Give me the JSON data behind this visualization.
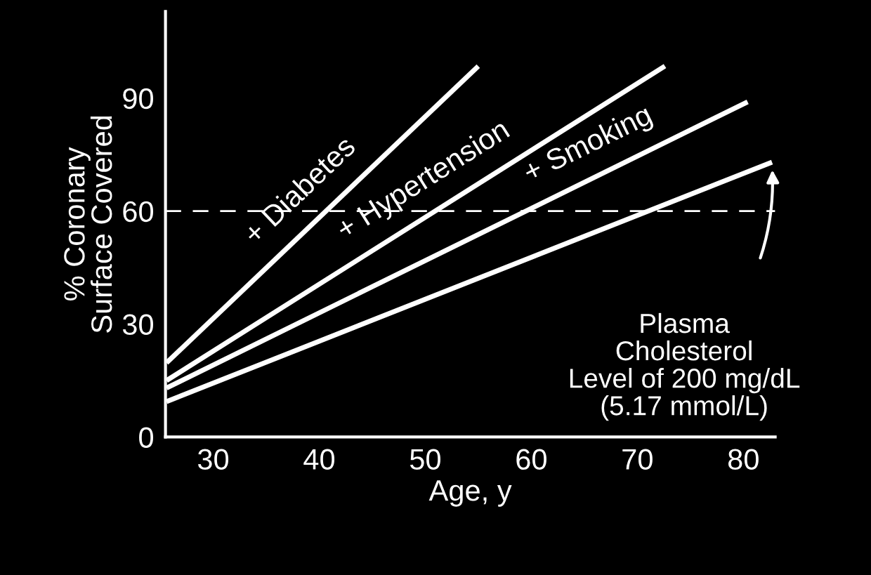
{
  "chart_data": {
    "type": "line",
    "xlabel": "Age, y",
    "ylabel": "% Coronary\nSurface Covered",
    "xlim": [
      25.5,
      83
    ],
    "ylim": [
      0,
      113
    ],
    "xticks": [
      30,
      40,
      50,
      60,
      70,
      80
    ],
    "yticks": [
      0,
      30,
      60,
      90
    ],
    "grid": false,
    "legend": false,
    "marker": "none",
    "line_style": "solid",
    "series": [
      {
        "name": "+ Diabetes",
        "color": "#ffffff",
        "x": [
          25.6,
          55
        ],
        "values": [
          19.7,
          98.5
        ]
      },
      {
        "name": "+ Hypertension",
        "color": "#ffffff",
        "x": [
          25.6,
          72.6
        ],
        "values": [
          15,
          98.5
        ]
      },
      {
        "name": "+ Smoking",
        "color": "#ffffff",
        "x": [
          25.6,
          80.4
        ],
        "values": [
          13,
          89
        ]
      },
      {
        "name": "Plasma\nCholesterol\nLevel of 200 mg/dL\n(5.17 mmol/L)",
        "color": "#ffffff",
        "x": [
          25.6,
          82.7
        ],
        "values": [
          9.4,
          73
        ]
      }
    ],
    "ref_lines": [
      {
        "axis": "y",
        "value": 60,
        "color": "#ffffff",
        "line_style": "dashed"
      }
    ]
  }
}
